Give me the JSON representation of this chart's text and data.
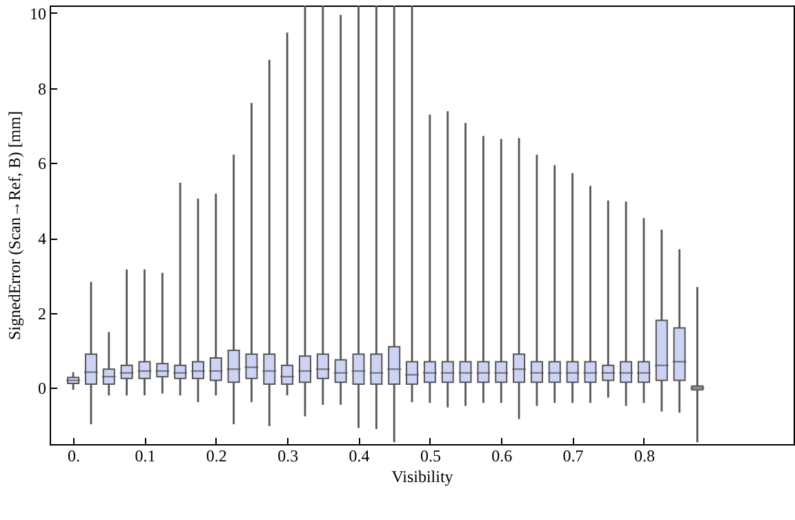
{
  "chart_data": {
    "type": "box",
    "xlabel": "Visibility",
    "ylabel": "SignedError (Scan→Ref, B) [mm]",
    "x": [
      0,
      0.025,
      0.05,
      0.075,
      0.1,
      0.125,
      0.15,
      0.175,
      0.2,
      0.225,
      0.25,
      0.275,
      0.3,
      0.325,
      0.35,
      0.375,
      0.4,
      0.425,
      0.45,
      0.475,
      0.5,
      0.525,
      0.55,
      0.575,
      0.6,
      0.625,
      0.65,
      0.675,
      0.7,
      0.725,
      0.75,
      0.775,
      0.8,
      0.825,
      0.85,
      0.875
    ],
    "xlim": [
      -0.033,
      1.01
    ],
    "xticks": [
      {
        "value": 0,
        "label": "0."
      },
      0.1,
      0.2,
      0.3,
      0.4,
      0.5,
      0.6,
      0.7,
      0.8
    ],
    "ylim": [
      -1.5,
      10.2
    ],
    "yticks": [
      0,
      2,
      4,
      6,
      8,
      10
    ],
    "series": [
      {
        "color": "#ccd3f5",
        "boxes": [
          {
            "low": -0.05,
            "q1": 0.12,
            "median": 0.2,
            "q3": 0.28,
            "high": 0.42
          },
          {
            "low": -0.97,
            "q1": 0.1,
            "median": 0.42,
            "q3": 0.9,
            "high": 2.83
          },
          {
            "low": -0.2,
            "q1": 0.1,
            "median": 0.3,
            "q3": 0.5,
            "high": 1.49
          },
          {
            "low": -0.2,
            "q1": 0.25,
            "median": 0.4,
            "q3": 0.6,
            "high": 3.16
          },
          {
            "low": -0.2,
            "q1": 0.25,
            "median": 0.45,
            "q3": 0.7,
            "high": 3.16
          },
          {
            "low": -0.15,
            "q1": 0.3,
            "median": 0.45,
            "q3": 0.65,
            "high": 3.07
          },
          {
            "low": -0.2,
            "q1": 0.25,
            "median": 0.4,
            "q3": 0.6,
            "high": 5.47
          },
          {
            "low": -0.38,
            "q1": 0.25,
            "median": 0.45,
            "q3": 0.7,
            "high": 5.05
          },
          {
            "low": -0.2,
            "q1": 0.2,
            "median": 0.45,
            "q3": 0.8,
            "high": 5.18
          },
          {
            "low": -0.97,
            "q1": 0.15,
            "median": 0.5,
            "q3": 1.0,
            "high": 6.22
          },
          {
            "low": -0.38,
            "q1": 0.25,
            "median": 0.55,
            "q3": 0.9,
            "high": 7.6
          },
          {
            "low": -1.02,
            "q1": 0.1,
            "median": 0.45,
            "q3": 0.9,
            "high": 8.75
          },
          {
            "low": -0.2,
            "q1": 0.1,
            "median": 0.3,
            "q3": 0.6,
            "high": 9.48
          },
          {
            "low": -0.76,
            "q1": 0.15,
            "median": 0.45,
            "q3": 0.85,
            "high": 10.2
          },
          {
            "low": -0.45,
            "q1": 0.25,
            "median": 0.5,
            "q3": 0.9,
            "high": 10.2
          },
          {
            "low": -0.45,
            "q1": 0.15,
            "median": 0.4,
            "q3": 0.75,
            "high": 9.95
          },
          {
            "low": -1.07,
            "q1": 0.1,
            "median": 0.45,
            "q3": 0.9,
            "high": 10.2
          },
          {
            "low": -1.1,
            "q1": 0.1,
            "median": 0.4,
            "q3": 0.9,
            "high": 10.2
          },
          {
            "low": -1.45,
            "q1": 0.1,
            "median": 0.5,
            "q3": 1.1,
            "high": 10.2
          },
          {
            "low": -0.38,
            "q1": 0.1,
            "median": 0.35,
            "q3": 0.7,
            "high": 10.2
          },
          {
            "low": -0.4,
            "q1": 0.15,
            "median": 0.4,
            "q3": 0.7,
            "high": 7.29
          },
          {
            "low": -0.52,
            "q1": 0.15,
            "median": 0.4,
            "q3": 0.7,
            "high": 7.38
          },
          {
            "low": -0.48,
            "q1": 0.15,
            "median": 0.4,
            "q3": 0.7,
            "high": 7.07
          },
          {
            "low": -0.4,
            "q1": 0.15,
            "median": 0.4,
            "q3": 0.7,
            "high": 6.72
          },
          {
            "low": -0.4,
            "q1": 0.15,
            "median": 0.4,
            "q3": 0.7,
            "high": 6.64
          },
          {
            "low": -0.83,
            "q1": 0.15,
            "median": 0.5,
            "q3": 0.9,
            "high": 6.67
          },
          {
            "low": -0.48,
            "q1": 0.15,
            "median": 0.4,
            "q3": 0.7,
            "high": 6.22
          },
          {
            "low": -0.4,
            "q1": 0.15,
            "median": 0.4,
            "q3": 0.7,
            "high": 5.94
          },
          {
            "low": -0.4,
            "q1": 0.15,
            "median": 0.4,
            "q3": 0.7,
            "high": 5.73
          },
          {
            "low": -0.4,
            "q1": 0.15,
            "median": 0.4,
            "q3": 0.7,
            "high": 5.39
          },
          {
            "low": -0.26,
            "q1": 0.2,
            "median": 0.4,
            "q3": 0.6,
            "high": 5.0
          },
          {
            "low": -0.48,
            "q1": 0.15,
            "median": 0.4,
            "q3": 0.7,
            "high": 4.97
          },
          {
            "low": -0.4,
            "q1": 0.15,
            "median": 0.4,
            "q3": 0.7,
            "high": 4.53
          },
          {
            "low": -0.63,
            "q1": 0.2,
            "median": 0.6,
            "q3": 1.8,
            "high": 4.22
          },
          {
            "low": -0.66,
            "q1": 0.2,
            "median": 0.7,
            "q3": 1.6,
            "high": 3.7
          },
          {
            "low": -1.45,
            "q1": -0.05,
            "median": 0,
            "q3": 0.05,
            "high": 2.69
          }
        ]
      }
    ]
  }
}
